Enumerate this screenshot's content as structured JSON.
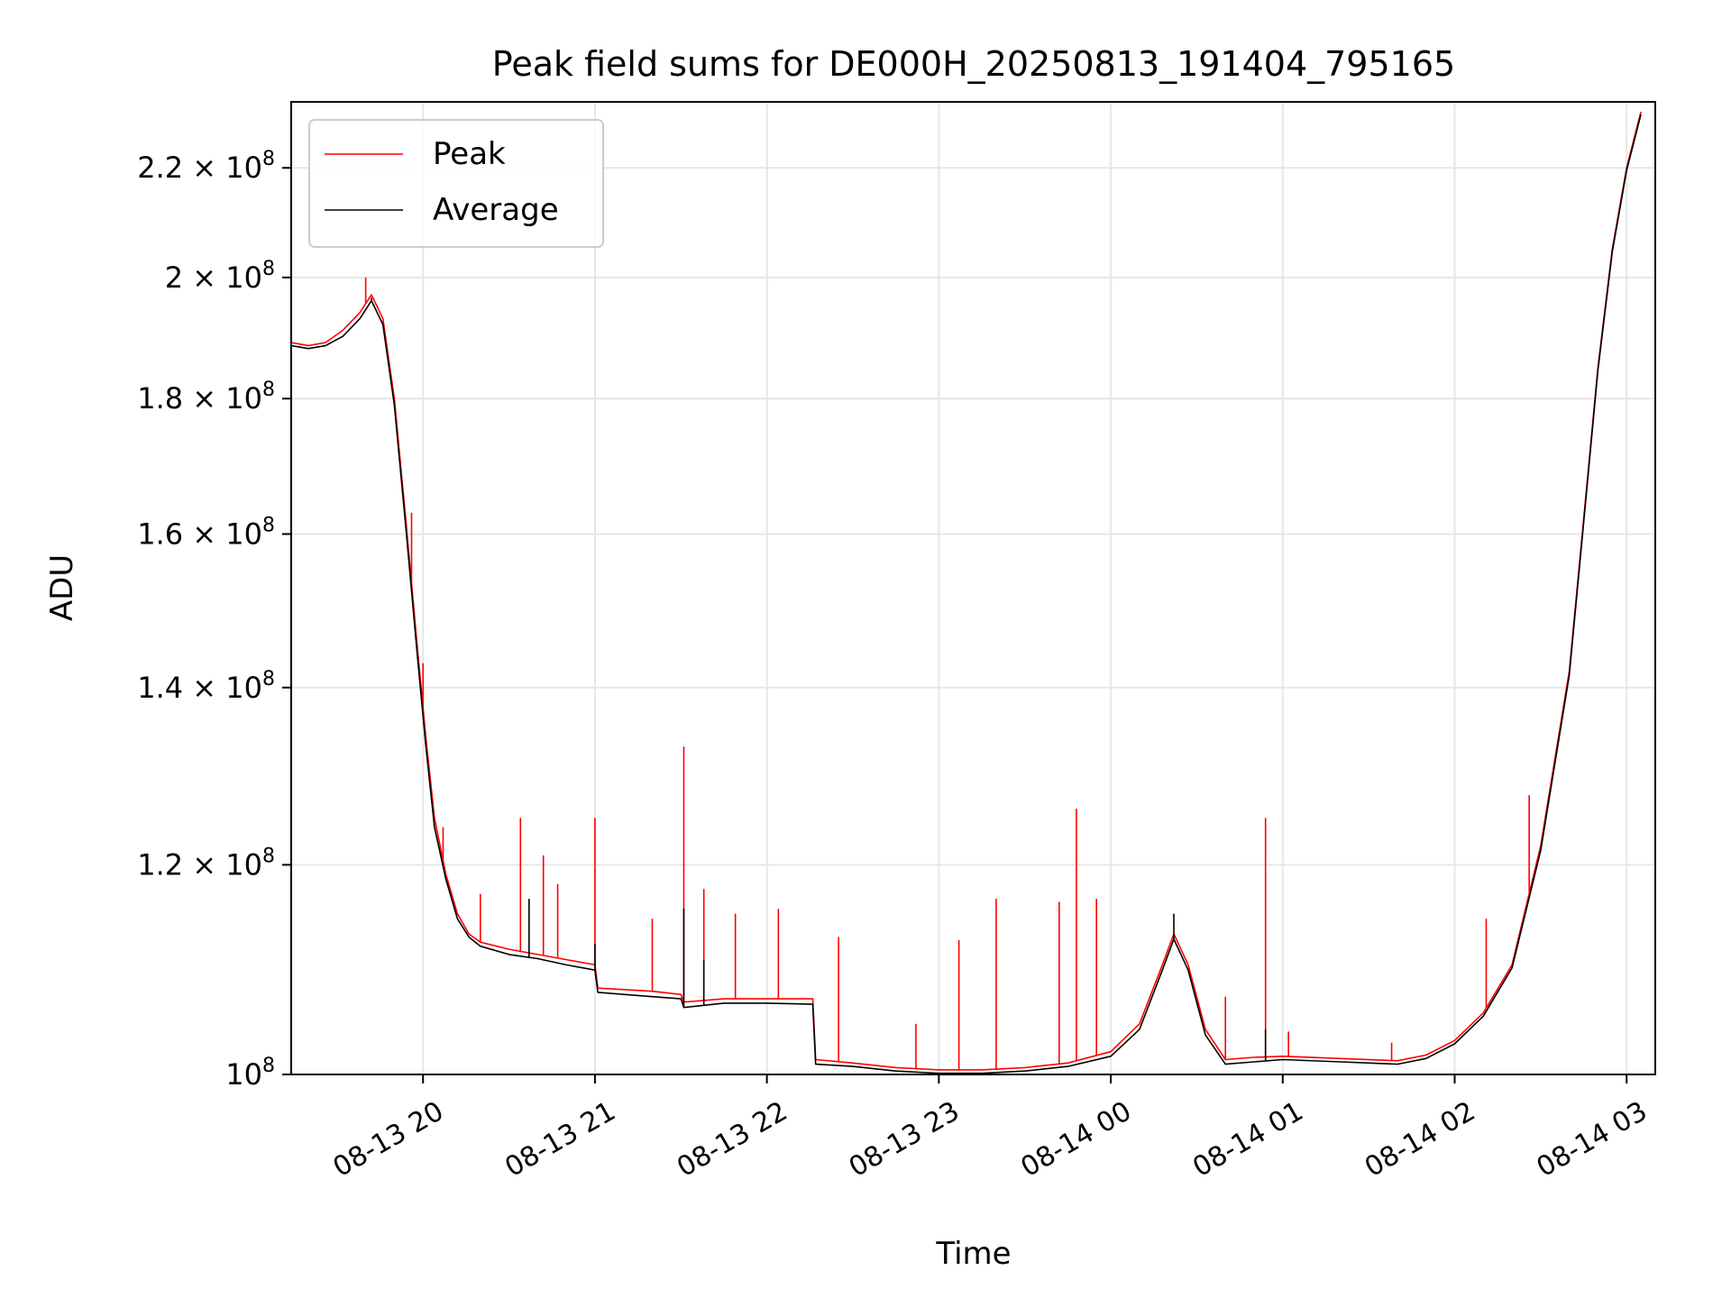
{
  "chart_data": {
    "type": "line",
    "title": "Peak field sums for DE000H_20250813_191404_795165",
    "xlabel": "Time",
    "ylabel": "ADU",
    "yscale": "log",
    "grid": true,
    "legend_position": "upper-left",
    "x_ticks": [
      "08-13 20",
      "08-13 21",
      "08-13 22",
      "08-13 23",
      "08-14 00",
      "08-14 01",
      "08-14 02",
      "08-14 03"
    ],
    "y_ticks": [
      {
        "value": 100000000,
        "mantissa": "",
        "exponent": "8"
      },
      {
        "value": 120000000,
        "mantissa": "1.2",
        "exponent": "8"
      },
      {
        "value": 140000000,
        "mantissa": "1.4",
        "exponent": "8"
      },
      {
        "value": 160000000,
        "mantissa": "1.6",
        "exponent": "8"
      },
      {
        "value": 180000000,
        "mantissa": "1.8",
        "exponent": "8"
      },
      {
        "value": 200000000,
        "mantissa": "2",
        "exponent": "8"
      },
      {
        "value": 220000000,
        "mantissa": "2.2",
        "exponent": "8"
      }
    ],
    "xlim": [
      "2025-08-13 19:14",
      "2025-08-14 03:10"
    ],
    "ylim": [
      100000000,
      233000000
    ],
    "series": [
      {
        "name": "Peak",
        "color": "#ff0000",
        "x": [
          "2025-08-13 19:14",
          "2025-08-13 19:20",
          "2025-08-13 19:26",
          "2025-08-13 19:32",
          "2025-08-13 19:38",
          "2025-08-13 19:42",
          "2025-08-13 19:46",
          "2025-08-13 19:50",
          "2025-08-13 19:54",
          "2025-08-13 19:58",
          "2025-08-13 20:01",
          "2025-08-13 20:04",
          "2025-08-13 20:08",
          "2025-08-13 20:12",
          "2025-08-13 20:16",
          "2025-08-13 20:20",
          "2025-08-13 20:30",
          "2025-08-13 20:40",
          "2025-08-13 20:50",
          "2025-08-13 21:00",
          "2025-08-13 21:01",
          "2025-08-13 21:20",
          "2025-08-13 21:30",
          "2025-08-13 21:31",
          "2025-08-13 21:45",
          "2025-08-13 22:00",
          "2025-08-13 22:16",
          "2025-08-13 22:17",
          "2025-08-13 22:30",
          "2025-08-13 22:45",
          "2025-08-13 23:00",
          "2025-08-13 23:15",
          "2025-08-13 23:30",
          "2025-08-13 23:45",
          "2025-08-14 00:00",
          "2025-08-14 00:10",
          "2025-08-14 00:18",
          "2025-08-14 00:22",
          "2025-08-14 00:27",
          "2025-08-14 00:33",
          "2025-08-14 00:40",
          "2025-08-14 00:50",
          "2025-08-14 01:00",
          "2025-08-14 01:20",
          "2025-08-14 01:40",
          "2025-08-14 01:50",
          "2025-08-14 02:00",
          "2025-08-14 02:10",
          "2025-08-14 02:20",
          "2025-08-14 02:30",
          "2025-08-14 02:40",
          "2025-08-14 02:45",
          "2025-08-14 02:50",
          "2025-08-14 02:55",
          "2025-08-14 03:00",
          "2025-08-14 03:05"
        ],
        "values": [
          189000000,
          188500000,
          189000000,
          191000000,
          194000000,
          197000000,
          193000000,
          180000000,
          162000000,
          145000000,
          134000000,
          125000000,
          119000000,
          115000000,
          113000000,
          112200000,
          111500000,
          111000000,
          110500000,
          110000000,
          107800000,
          107500000,
          107200000,
          106500000,
          106800000,
          106800000,
          106800000,
          101300000,
          101000000,
          100600000,
          100400000,
          100400000,
          100600000,
          101000000,
          102000000,
          104500000,
          110000000,
          113000000,
          110000000,
          104000000,
          101300000,
          101500000,
          101600000,
          101400000,
          101200000,
          101700000,
          103000000,
          105500000,
          110000000,
          122000000,
          142000000,
          162000000,
          185000000,
          205000000,
          220000000,
          231000000
        ],
        "spikes": [
          {
            "x": "2025-08-13 19:40",
            "value": 200000000
          },
          {
            "x": "2025-08-13 19:56",
            "value": 163000000
          },
          {
            "x": "2025-08-13 20:00",
            "value": 143000000
          },
          {
            "x": "2025-08-13 20:07",
            "value": 124000000
          },
          {
            "x": "2025-08-13 20:20",
            "value": 117000000
          },
          {
            "x": "2025-08-13 20:34",
            "value": 125000000
          },
          {
            "x": "2025-08-13 20:42",
            "value": 121000000
          },
          {
            "x": "2025-08-13 20:47",
            "value": 118000000
          },
          {
            "x": "2025-08-13 21:00",
            "value": 125000000
          },
          {
            "x": "2025-08-13 21:20",
            "value": 114500000
          },
          {
            "x": "2025-08-13 21:31",
            "value": 133000000
          },
          {
            "x": "2025-08-13 21:38",
            "value": 117500000
          },
          {
            "x": "2025-08-13 21:49",
            "value": 115000000
          },
          {
            "x": "2025-08-13 22:04",
            "value": 115500000
          },
          {
            "x": "2025-08-13 22:25",
            "value": 112700000
          },
          {
            "x": "2025-08-13 22:52",
            "value": 104500000
          },
          {
            "x": "2025-08-13 23:07",
            "value": 112400000
          },
          {
            "x": "2025-08-13 23:20",
            "value": 116500000
          },
          {
            "x": "2025-08-13 23:42",
            "value": 116200000
          },
          {
            "x": "2025-08-13 23:48",
            "value": 126000000
          },
          {
            "x": "2025-08-13 23:55",
            "value": 116500000
          },
          {
            "x": "2025-08-14 00:40",
            "value": 107000000
          },
          {
            "x": "2025-08-14 00:54",
            "value": 125000000
          },
          {
            "x": "2025-08-14 01:02",
            "value": 103800000
          },
          {
            "x": "2025-08-14 01:38",
            "value": 102800000
          },
          {
            "x": "2025-08-14 02:11",
            "value": 114500000
          },
          {
            "x": "2025-08-14 02:26",
            "value": 127500000
          }
        ]
      },
      {
        "name": "Average",
        "color": "#000000",
        "x": [
          "2025-08-13 19:14",
          "2025-08-13 19:20",
          "2025-08-13 19:26",
          "2025-08-13 19:32",
          "2025-08-13 19:38",
          "2025-08-13 19:42",
          "2025-08-13 19:46",
          "2025-08-13 19:50",
          "2025-08-13 19:54",
          "2025-08-13 19:58",
          "2025-08-13 20:01",
          "2025-08-13 20:04",
          "2025-08-13 20:08",
          "2025-08-13 20:12",
          "2025-08-13 20:16",
          "2025-08-13 20:20",
          "2025-08-13 20:30",
          "2025-08-13 20:40",
          "2025-08-13 20:50",
          "2025-08-13 21:00",
          "2025-08-13 21:01",
          "2025-08-13 21:20",
          "2025-08-13 21:30",
          "2025-08-13 21:31",
          "2025-08-13 21:45",
          "2025-08-13 22:00",
          "2025-08-13 22:16",
          "2025-08-13 22:17",
          "2025-08-13 22:30",
          "2025-08-13 22:45",
          "2025-08-13 23:00",
          "2025-08-13 23:15",
          "2025-08-13 23:30",
          "2025-08-13 23:45",
          "2025-08-14 00:00",
          "2025-08-14 00:10",
          "2025-08-14 00:18",
          "2025-08-14 00:22",
          "2025-08-14 00:27",
          "2025-08-14 00:33",
          "2025-08-14 00:40",
          "2025-08-14 00:50",
          "2025-08-14 01:00",
          "2025-08-14 01:20",
          "2025-08-14 01:40",
          "2025-08-14 01:50",
          "2025-08-14 02:00",
          "2025-08-14 02:10",
          "2025-08-14 02:20",
          "2025-08-14 02:30",
          "2025-08-14 02:40",
          "2025-08-14 02:45",
          "2025-08-14 02:50",
          "2025-08-14 02:55",
          "2025-08-14 03:00",
          "2025-08-14 03:05"
        ],
        "values": [
          188500000,
          188000000,
          188500000,
          190000000,
          193000000,
          196000000,
          192000000,
          179000000,
          161000000,
          144000000,
          133000000,
          124000000,
          118500000,
          114500000,
          112700000,
          111800000,
          111000000,
          110600000,
          110000000,
          109500000,
          107400000,
          107000000,
          106800000,
          106000000,
          106400000,
          106400000,
          106300000,
          100900000,
          100700000,
          100300000,
          100100000,
          100100000,
          100300000,
          100700000,
          101600000,
          104000000,
          109500000,
          112500000,
          109500000,
          103500000,
          100900000,
          101100000,
          101300000,
          101100000,
          100900000,
          101400000,
          102700000,
          105200000,
          109700000,
          121500000,
          141500000,
          161500000,
          184500000,
          204500000,
          219500000,
          230500000
        ],
        "spikes": [
          {
            "x": "2025-08-13 19:42",
            "value": 196500000
          },
          {
            "x": "2025-08-13 20:37",
            "value": 116500000
          },
          {
            "x": "2025-08-13 21:00",
            "value": 112000000
          },
          {
            "x": "2025-08-13 21:31",
            "value": 115500000
          },
          {
            "x": "2025-08-13 21:38",
            "value": 110500000
          },
          {
            "x": "2025-08-14 00:22",
            "value": 115000000
          },
          {
            "x": "2025-08-14 00:54",
            "value": 104000000
          }
        ]
      }
    ]
  }
}
